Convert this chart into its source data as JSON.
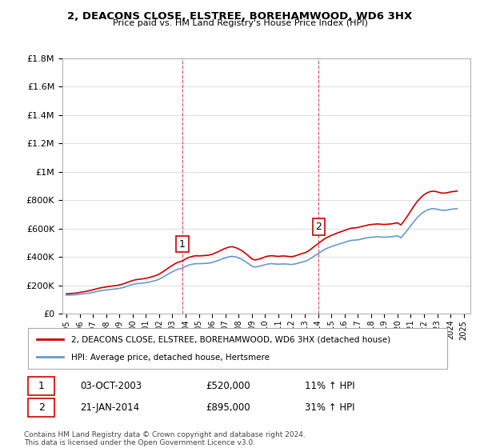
{
  "title": "2, DEACONS CLOSE, ELSTREE, BOREHAMWOOD, WD6 3HX",
  "subtitle": "Price paid vs. HM Land Registry's House Price Index (HPI)",
  "hpi_label": "HPI: Average price, detached house, Hertsmere",
  "price_label": "2, DEACONS CLOSE, ELSTREE, BOREHAMWOOD, WD6 3HX (detached house)",
  "footer1": "Contains HM Land Registry data © Crown copyright and database right 2024.",
  "footer2": "This data is licensed under the Open Government Licence v3.0.",
  "transaction1": {
    "label": "1",
    "date": "03-OCT-2003",
    "price": "£520,000",
    "hpi_change": "11% ↑ HPI",
    "year": 2003.75
  },
  "transaction2": {
    "label": "2",
    "date": "21-JAN-2014",
    "price": "£895,000",
    "hpi_change": "31% ↑ HPI",
    "year": 2014.05
  },
  "price_color": "#cc0000",
  "hpi_color": "#6699cc",
  "vline_color": "#cc0000",
  "marker_box_color": "#cc0000",
  "ylim": [
    0,
    1800000
  ],
  "xlim_start": 1995,
  "xlim_end": 2025.5,
  "background_color": "#ffffff",
  "grid_color": "#dddddd",
  "hpi_data": {
    "years": [
      1995.0,
      1995.25,
      1995.5,
      1995.75,
      1996.0,
      1996.25,
      1996.5,
      1996.75,
      1997.0,
      1997.25,
      1997.5,
      1997.75,
      1998.0,
      1998.25,
      1998.5,
      1998.75,
      1999.0,
      1999.25,
      1999.5,
      1999.75,
      2000.0,
      2000.25,
      2000.5,
      2000.75,
      2001.0,
      2001.25,
      2001.5,
      2001.75,
      2002.0,
      2002.25,
      2002.5,
      2002.75,
      2003.0,
      2003.25,
      2003.5,
      2003.75,
      2004.0,
      2004.25,
      2004.5,
      2004.75,
      2005.0,
      2005.25,
      2005.5,
      2005.75,
      2006.0,
      2006.25,
      2006.5,
      2006.75,
      2007.0,
      2007.25,
      2007.5,
      2007.75,
      2008.0,
      2008.25,
      2008.5,
      2008.75,
      2009.0,
      2009.25,
      2009.5,
      2009.75,
      2010.0,
      2010.25,
      2010.5,
      2010.75,
      2011.0,
      2011.25,
      2011.5,
      2011.75,
      2012.0,
      2012.25,
      2012.5,
      2012.75,
      2013.0,
      2013.25,
      2013.5,
      2013.75,
      2014.0,
      2014.25,
      2014.5,
      2014.75,
      2015.0,
      2015.25,
      2015.5,
      2015.75,
      2016.0,
      2016.25,
      2016.5,
      2016.75,
      2017.0,
      2017.25,
      2017.5,
      2017.75,
      2018.0,
      2018.25,
      2018.5,
      2018.75,
      2019.0,
      2019.25,
      2019.5,
      2019.75,
      2020.0,
      2020.25,
      2020.5,
      2020.75,
      2021.0,
      2021.25,
      2021.5,
      2021.75,
      2022.0,
      2022.25,
      2022.5,
      2022.75,
      2023.0,
      2023.25,
      2023.5,
      2023.75,
      2024.0,
      2024.25,
      2024.5
    ],
    "values": [
      130000,
      131000,
      132000,
      133000,
      136000,
      139000,
      142000,
      145000,
      150000,
      155000,
      160000,
      163000,
      167000,
      170000,
      172000,
      174000,
      178000,
      183000,
      190000,
      198000,
      205000,
      210000,
      213000,
      215000,
      218000,
      222000,
      228000,
      234000,
      242000,
      255000,
      268000,
      282000,
      295000,
      307000,
      315000,
      320000,
      333000,
      342000,
      348000,
      352000,
      352000,
      353000,
      354000,
      356000,
      360000,
      368000,
      376000,
      385000,
      393000,
      400000,
      404000,
      400000,
      393000,
      382000,
      368000,
      352000,
      335000,
      328000,
      332000,
      338000,
      345000,
      350000,
      352000,
      350000,
      348000,
      350000,
      350000,
      348000,
      346000,
      350000,
      356000,
      362000,
      368000,
      378000,
      392000,
      408000,
      422000,
      438000,
      452000,
      463000,
      472000,
      480000,
      488000,
      495000,
      502000,
      510000,
      516000,
      518000,
      520000,
      525000,
      530000,
      535000,
      538000,
      540000,
      542000,
      540000,
      538000,
      540000,
      542000,
      545000,
      548000,
      535000,
      560000,
      590000,
      620000,
      650000,
      678000,
      700000,
      718000,
      730000,
      738000,
      740000,
      735000,
      730000,
      728000,
      730000,
      735000,
      738000,
      740000
    ]
  },
  "price_data": {
    "years": [
      1995.0,
      1995.25,
      1995.5,
      1995.75,
      1996.0,
      1996.25,
      1996.5,
      1996.75,
      1997.0,
      1997.25,
      1997.5,
      1997.75,
      1998.0,
      1998.25,
      1998.5,
      1998.75,
      1999.0,
      1999.25,
      1999.5,
      1999.75,
      2000.0,
      2000.25,
      2000.5,
      2000.75,
      2001.0,
      2001.25,
      2001.5,
      2001.75,
      2002.0,
      2002.25,
      2002.5,
      2002.75,
      2003.0,
      2003.25,
      2003.5,
      2003.75,
      2004.0,
      2004.25,
      2004.5,
      2004.75,
      2005.0,
      2005.25,
      2005.5,
      2005.75,
      2006.0,
      2006.25,
      2006.5,
      2006.75,
      2007.0,
      2007.25,
      2007.5,
      2007.75,
      2008.0,
      2008.25,
      2008.5,
      2008.75,
      2009.0,
      2009.25,
      2009.5,
      2009.75,
      2010.0,
      2010.25,
      2010.5,
      2010.75,
      2011.0,
      2011.25,
      2011.5,
      2011.75,
      2012.0,
      2012.25,
      2012.5,
      2012.75,
      2013.0,
      2013.25,
      2013.5,
      2013.75,
      2014.0,
      2014.25,
      2014.5,
      2014.75,
      2015.0,
      2015.25,
      2015.5,
      2015.75,
      2016.0,
      2016.25,
      2016.5,
      2016.75,
      2017.0,
      2017.25,
      2017.5,
      2017.75,
      2018.0,
      2018.25,
      2018.5,
      2018.75,
      2019.0,
      2019.25,
      2019.5,
      2019.75,
      2020.0,
      2020.25,
      2020.5,
      2020.75,
      2021.0,
      2021.25,
      2021.5,
      2021.75,
      2022.0,
      2022.25,
      2022.5,
      2022.75,
      2023.0,
      2023.25,
      2023.5,
      2023.75,
      2024.0,
      2024.25,
      2024.5
    ],
    "values": [
      140000,
      141000,
      143000,
      145000,
      149000,
      153000,
      157000,
      162000,
      168000,
      174000,
      180000,
      184000,
      188000,
      192000,
      195000,
      197000,
      202000,
      208000,
      216000,
      225000,
      233000,
      239000,
      242000,
      245000,
      249000,
      254000,
      261000,
      268000,
      278000,
      293000,
      308000,
      325000,
      340000,
      354000,
      364000,
      370000,
      385000,
      396000,
      403000,
      408000,
      407000,
      408000,
      410000,
      412000,
      418000,
      428000,
      438000,
      450000,
      460000,
      468000,
      472000,
      466000,
      456000,
      443000,
      426000,
      407000,
      386000,
      378000,
      383000,
      390000,
      400000,
      406000,
      408000,
      406000,
      403000,
      406000,
      406000,
      403000,
      401000,
      406000,
      414000,
      422000,
      428000,
      440000,
      457000,
      476000,
      493000,
      511000,
      528000,
      540000,
      551000,
      560000,
      570000,
      578000,
      586000,
      595000,
      602000,
      604000,
      607000,
      613000,
      618000,
      624000,
      628000,
      630000,
      632000,
      630000,
      628000,
      630000,
      632000,
      636000,
      640000,
      625000,
      654000,
      688000,
      724000,
      760000,
      792000,
      817000,
      838000,
      852000,
      861000,
      863000,
      858000,
      851000,
      849000,
      852000,
      858000,
      861000,
      864000
    ]
  }
}
